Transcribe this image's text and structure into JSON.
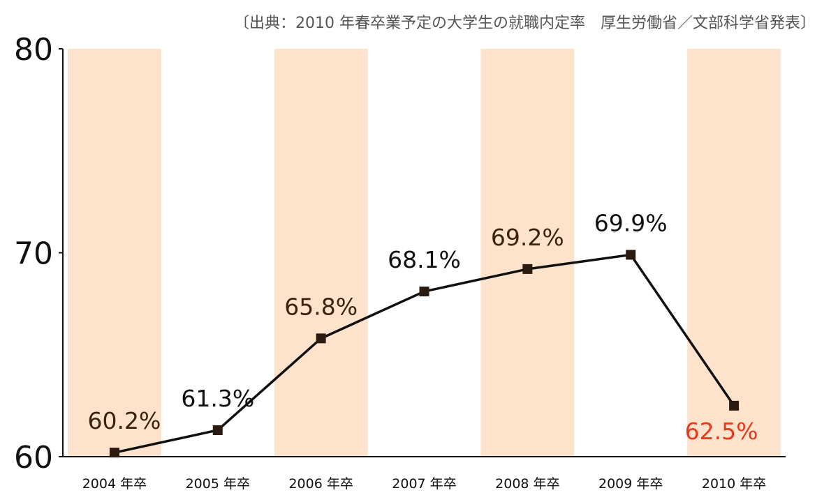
{
  "chart_data": {
    "type": "line",
    "title": "",
    "source_note": "〔出典：2010 年春卒業予定の大学生の就職内定率　厚生労働省／文部科学省発表〕",
    "xlabel": "",
    "ylabel": "",
    "categories": [
      "2004 年卒",
      "2005 年卒",
      "2006 年卒",
      "2007 年卒",
      "2008 年卒",
      "2009 年卒",
      "2010 年卒"
    ],
    "series": [
      {
        "values": [
          60.2,
          61.3,
          65.8,
          68.1,
          69.2,
          69.9,
          62.5
        ],
        "labels": [
          "60.2%",
          "61.3%",
          "65.8%",
          "68.1%",
          "69.2%",
          "69.9%",
          "62.5%"
        ]
      }
    ],
    "ylim": [
      60,
      80
    ],
    "yticks": [
      "60",
      "70",
      "80"
    ],
    "grid": false,
    "legend": "none",
    "band_categories": [
      0,
      2,
      4,
      6
    ],
    "highlight_index": 6,
    "colors": {
      "band": "#fde3cc",
      "line": "#111111",
      "marker": "#2a1a10",
      "label": "#111111",
      "label_alt": "#3a2410",
      "highlight": "#e53a1f",
      "axis": "#111111"
    }
  }
}
